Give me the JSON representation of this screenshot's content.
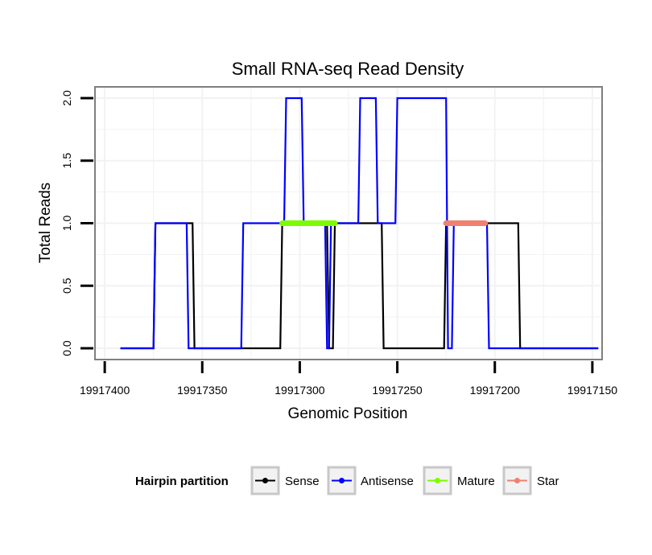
{
  "chart_data": {
    "type": "line",
    "title": "Small RNA-seq Read Density",
    "xlabel": "Genomic Position",
    "ylabel": "Total Reads",
    "xlim": [
      19917405,
      19917145
    ],
    "ylim": [
      -0.09,
      2.09
    ],
    "x_reversed": true,
    "grid": true,
    "xticks": [
      19917400,
      19917350,
      19917300,
      19917250,
      19917200,
      19917150
    ],
    "xtick_labels": [
      "19917400",
      "19917350",
      "19917300",
      "19917250",
      "19917200",
      "19917150"
    ],
    "yticks": [
      0.0,
      0.5,
      1.0,
      1.5,
      2.0
    ],
    "ytick_labels": [
      "0.0",
      "0.5",
      "1.0",
      "1.5",
      "2.0"
    ],
    "series": [
      {
        "name": "Sense",
        "color": "#000000",
        "x": [
          19917392,
          19917375,
          19917374,
          19917355,
          19917354,
          19917310,
          19917309,
          19917286,
          19917285,
          19917283,
          19917282,
          19917258,
          19917257,
          19917226,
          19917225,
          19917188,
          19917187,
          19917147
        ],
        "y": [
          0,
          0,
          1,
          1,
          0,
          0,
          1,
          1,
          0,
          0,
          1,
          1,
          0,
          0,
          1,
          1,
          0,
          0
        ]
      },
      {
        "name": "Antisense",
        "color": "#0000ff",
        "x": [
          19917392,
          19917375,
          19917374,
          19917358,
          19917357,
          19917330,
          19917329,
          19917308,
          19917307,
          19917299,
          19917298,
          19917287,
          19917286,
          19917285,
          19917284,
          19917270,
          19917269,
          19917261,
          19917260,
          19917251,
          19917250,
          19917225,
          19917224,
          19917222,
          19917221,
          19917204,
          19917203,
          19917147
        ],
        "y": [
          0,
          0,
          1,
          1,
          0,
          0,
          1,
          1,
          2,
          2,
          1,
          1,
          0,
          0,
          1,
          1,
          2,
          2,
          1,
          1,
          2,
          2,
          0,
          0,
          1,
          1,
          0,
          0
        ]
      },
      {
        "name": "Mature",
        "color": "#7cfc00",
        "x": [
          19917309,
          19917282
        ],
        "y": [
          1,
          1
        ]
      },
      {
        "name": "Star",
        "color": "#f08070",
        "x": [
          19917225,
          19917205
        ],
        "y": [
          1,
          1
        ]
      }
    ],
    "legend": {
      "title": "Hairpin partition",
      "placement": "bottom",
      "entries": [
        "Sense",
        "Antisense",
        "Mature",
        "Star"
      ]
    }
  }
}
